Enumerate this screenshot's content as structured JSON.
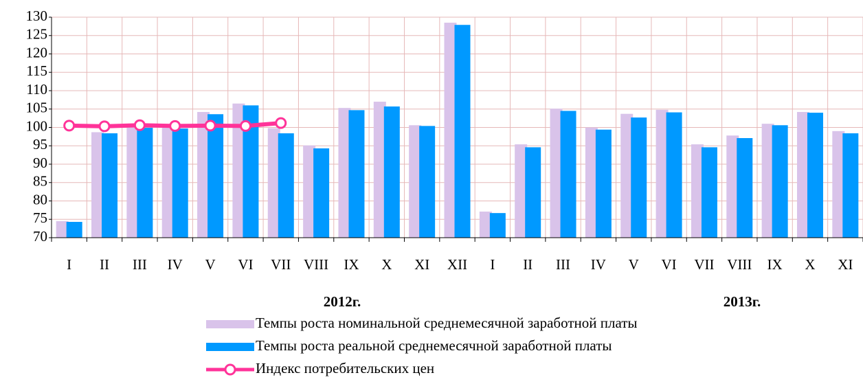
{
  "chart_data": {
    "type": "bar",
    "categories": [
      "I",
      "II",
      "III",
      "IV",
      "V",
      "VI",
      "VII",
      "VIII",
      "IX",
      "X",
      "XI",
      "XII",
      "I",
      "II",
      "III",
      "IV",
      "V",
      "VI",
      "VII",
      "VIII",
      "IX",
      "X",
      "XI"
    ],
    "annotations": [
      "2012г.",
      "2013г."
    ],
    "series": [
      {
        "name": "Темпы роста номинальной среднемесячной заработной платы",
        "color": "#d9c3ea",
        "type": "bar",
        "values": [
          74.5,
          98.7,
          100.3,
          100.0,
          104.2,
          106.5,
          99.8,
          95.1,
          105.3,
          107.0,
          100.6,
          128.5,
          77.1,
          95.4,
          105.1,
          100.0,
          103.7,
          104.8,
          95.4,
          97.8,
          101.0,
          104.2,
          99.0
        ]
      },
      {
        "name": "Темпы роста реальной среднемесячной заработной платы",
        "color": "#0099ff",
        "type": "bar",
        "values": [
          74.3,
          98.4,
          99.9,
          99.7,
          103.6,
          106.0,
          98.4,
          94.3,
          104.7,
          105.7,
          100.4,
          127.9,
          76.7,
          94.6,
          104.5,
          99.4,
          102.7,
          104.1,
          94.6,
          97.1,
          100.6,
          104.0,
          98.4
        ]
      },
      {
        "name": "Индекс потребительских цен",
        "color": "#ff3399",
        "type": "line",
        "values": [
          100.5,
          100.3,
          100.6,
          100.4,
          100.5,
          100.4,
          101.2,
          null,
          null,
          null,
          null,
          null,
          null,
          null,
          null,
          null,
          null,
          null,
          null,
          null,
          null,
          null,
          null
        ]
      }
    ],
    "ylim": [
      70,
      130
    ],
    "yticks": [
      70,
      75,
      80,
      85,
      90,
      95,
      100,
      105,
      110,
      115,
      120,
      125,
      130
    ],
    "grid": true
  }
}
